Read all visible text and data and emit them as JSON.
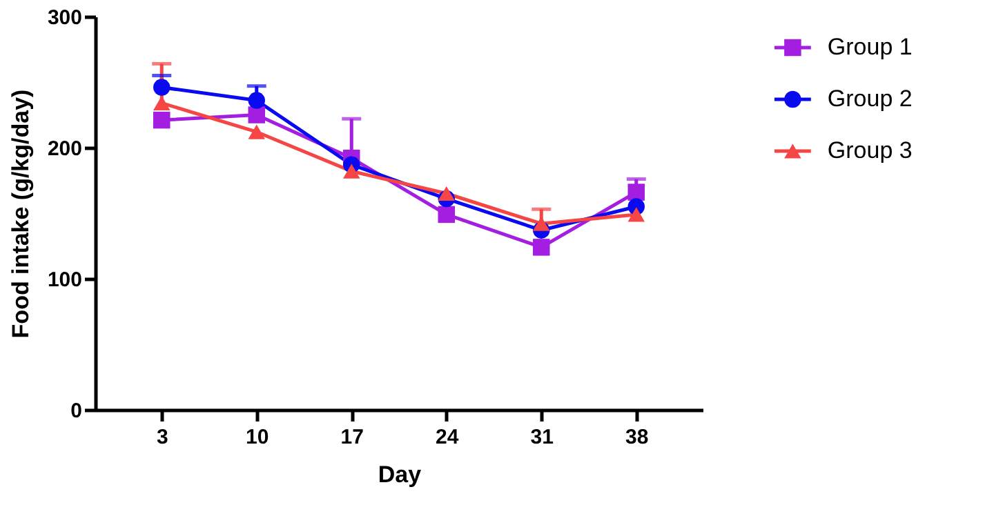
{
  "chart_data": {
    "type": "line",
    "xlabel": "Day",
    "ylabel": "Food intake (g/kg/day)",
    "categories": [
      "3",
      "10",
      "17",
      "24",
      "31",
      "38"
    ],
    "ylim": [
      0,
      300
    ],
    "yticks": [
      0,
      100,
      200,
      300
    ],
    "grid": false,
    "legend": "top right",
    "line_style": "solid",
    "series": [
      {
        "name": "Group 1",
        "color": "#a31ee0",
        "marker": "square",
        "values": [
          221,
          225,
          192,
          149,
          124,
          166
        ],
        "errors": [
          null,
          null,
          [
            192,
            222
          ],
          null,
          null,
          [
            166,
            176
          ]
        ]
      },
      {
        "name": "Group 2",
        "color": "#0a0af0",
        "marker": "circle",
        "values": [
          246,
          236,
          187,
          161,
          137,
          155
        ],
        "errors": [
          [
            246,
            255
          ],
          [
            236,
            247
          ],
          null,
          null,
          null,
          null
        ]
      },
      {
        "name": "Group 3",
        "color": "#f54545",
        "marker": "triangle",
        "values": [
          234,
          212,
          182,
          165,
          142,
          149
        ],
        "errors": [
          [
            234,
            264
          ],
          null,
          null,
          null,
          [
            142,
            153
          ],
          null
        ]
      }
    ]
  }
}
